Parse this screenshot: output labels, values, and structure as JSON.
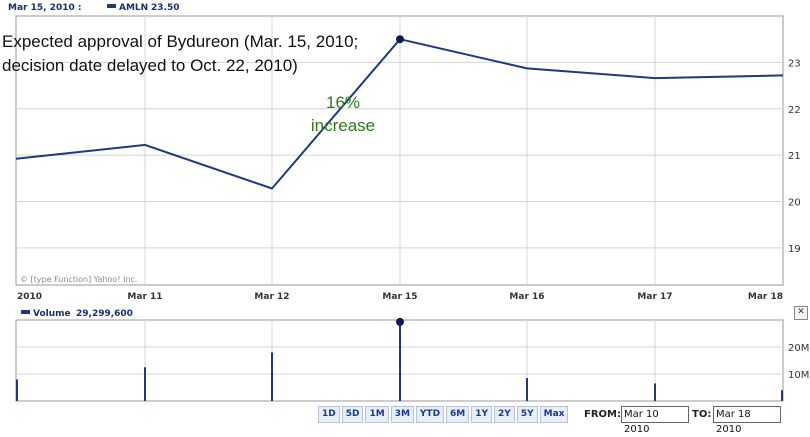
{
  "header": {
    "date": "Mar 15, 2010 :",
    "ticker": "AMLN",
    "price": "23.50"
  },
  "annotation": {
    "line1": "Expected approval of Bydureon (Mar. 15, 2010;",
    "line2": "decision date delayed to Oct. 22, 2010)",
    "increase_pct": "16%",
    "increase_word": "increase"
  },
  "credit": "© [type Function] Yahoo! Inc.",
  "volume_label": {
    "name": "Volume",
    "value": "29,299,600"
  },
  "range_buttons": [
    "1D",
    "5D",
    "1M",
    "3M",
    "YTD",
    "6M",
    "1Y",
    "2Y",
    "5Y",
    "Max"
  ],
  "from_label": "FROM:",
  "from_value": "Mar 10 2010",
  "to_label": "TO:",
  "to_value": "Mar 18 2010",
  "close_icon": "close-icon",
  "colors": {
    "line": "#1f3a7a",
    "grid": "#d4d4d4",
    "axis": "#9a9a9a",
    "annotation_green": "#2f7a1e"
  },
  "chart_data": [
    {
      "type": "line",
      "title": "",
      "series": [
        {
          "name": "AMLN",
          "x": [
            "Mar 10",
            "Mar 11",
            "Mar 12",
            "Mar 15",
            "Mar 16",
            "Mar 17",
            "Mar 18"
          ],
          "values": [
            20.92,
            21.22,
            20.28,
            23.5,
            22.87,
            22.66,
            22.72
          ]
        }
      ],
      "x_tick_labels": [
        "2010",
        "Mar 11",
        "Mar 12",
        "Mar 15",
        "Mar 16",
        "Mar 17",
        "Mar 18"
      ],
      "y_ticks": [
        19,
        20,
        21,
        22,
        23
      ],
      "ylim": [
        18.2,
        24.0
      ],
      "grid": true
    },
    {
      "type": "bar",
      "title": "",
      "series": [
        {
          "name": "Volume",
          "x": [
            "Mar 10",
            "Mar 11",
            "Mar 12",
            "Mar 15",
            "Mar 16",
            "Mar 17",
            "Mar 18"
          ],
          "values": [
            8000000,
            12500000,
            18000000,
            29299600,
            8500000,
            6500000,
            4000000
          ]
        }
      ],
      "y_ticks": [
        10000000,
        20000000
      ],
      "y_tick_labels": [
        "10M",
        "20M"
      ],
      "ylim": [
        0,
        30000000
      ],
      "grid": true
    }
  ]
}
